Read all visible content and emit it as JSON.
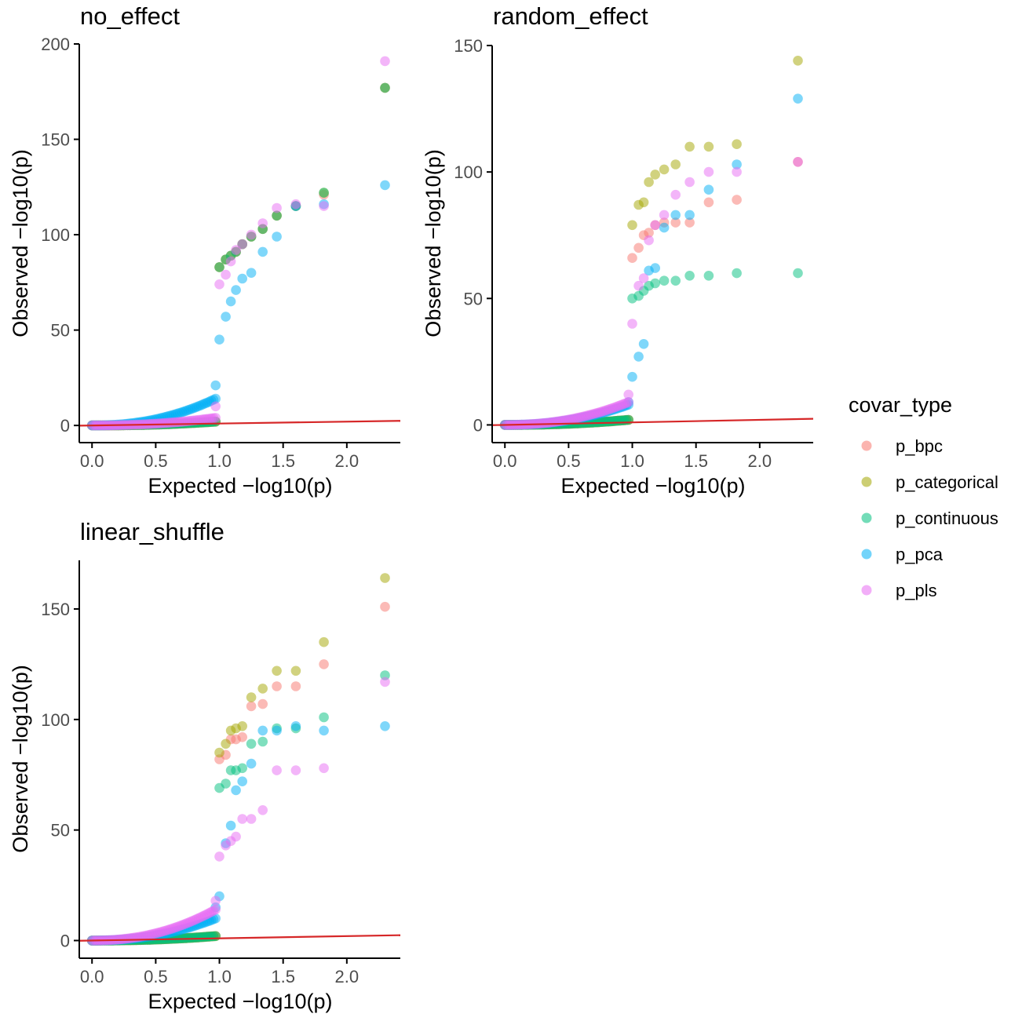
{
  "colors": {
    "p_bpc": "#F8766D",
    "p_categorical": "#A3A500",
    "p_continuous": "#00BF7D",
    "p_pca": "#00B0F6",
    "p_pls": "#E76BF3",
    "reference_line": "#D62728",
    "axis": "#000000",
    "tick_text": "#4D4D4D"
  },
  "legend": {
    "title": "covar_type",
    "items": [
      "p_bpc",
      "p_categorical",
      "p_continuous",
      "p_pca",
      "p_pls"
    ]
  },
  "chart_data": [
    {
      "type": "scatter",
      "title": "no_effect",
      "xlabel": "Expected −log10(p)",
      "ylabel": "Observed −log10(p)",
      "xlim": [
        -0.1,
        2.42
      ],
      "ylim": [
        -9,
        200
      ],
      "xticks": [
        0.0,
        0.5,
        1.0,
        1.5,
        2.0
      ],
      "xtick_labels": [
        "0.0",
        "0.5",
        "1.0",
        "1.5",
        "2.0"
      ],
      "yticks": [
        0,
        50,
        100,
        150,
        200
      ],
      "ytick_labels": [
        "0",
        "50",
        "100",
        "150",
        "200"
      ],
      "reference_line": "y = x",
      "grid": false,
      "series": [
        {
          "name": "p_bpc",
          "tail_x": [
            1.0,
            1.05,
            1.09,
            1.13,
            1.18,
            1.25,
            1.34,
            1.45,
            1.6,
            1.82,
            2.3
          ],
          "tail_y": [
            83,
            87,
            89,
            91,
            95,
            99,
            103,
            110,
            115,
            121,
            177
          ],
          "bulk_end": 2.0
        },
        {
          "name": "p_categorical",
          "tail_x": [
            1.0,
            1.05,
            1.09,
            1.13,
            1.18,
            1.25,
            1.34,
            1.45,
            1.6,
            1.82,
            2.3
          ],
          "tail_y": [
            83,
            87,
            89,
            91,
            95,
            99,
            103,
            110,
            115,
            122,
            177
          ],
          "bulk_end": 2.0
        },
        {
          "name": "p_continuous",
          "tail_x": [
            1.0,
            1.05,
            1.09,
            1.13,
            1.18,
            1.25,
            1.34,
            1.45,
            1.6,
            1.82,
            2.3
          ],
          "tail_y": [
            83,
            87,
            89,
            91,
            95,
            99,
            103,
            110,
            115,
            122,
            177
          ],
          "bulk_end": 2.0
        },
        {
          "name": "p_pca",
          "tail_x": [
            0.97,
            1.0,
            1.05,
            1.09,
            1.13,
            1.18,
            1.25,
            1.34,
            1.45,
            1.6,
            1.82,
            2.3
          ],
          "tail_y": [
            21,
            45,
            57,
            65,
            71,
            77,
            80,
            91,
            99,
            115,
            116,
            126
          ],
          "bulk_end": 14
        },
        {
          "name": "p_pls",
          "tail_x": [
            0.97,
            1.0,
            1.05,
            1.09,
            1.13,
            1.18,
            1.25,
            1.34,
            1.45,
            1.6,
            1.82,
            2.3
          ],
          "tail_y": [
            10,
            74,
            79,
            86,
            92,
            95,
            100,
            106,
            114,
            116,
            115,
            191
          ],
          "bulk_end": 4
        }
      ]
    },
    {
      "type": "scatter",
      "title": "random_effect",
      "xlabel": "Expected −log10(p)",
      "ylabel": "Observed −log10(p)",
      "xlim": [
        -0.1,
        2.42
      ],
      "ylim": [
        -7,
        150
      ],
      "xticks": [
        0.0,
        0.5,
        1.0,
        1.5,
        2.0
      ],
      "xtick_labels": [
        "0.0",
        "0.5",
        "1.0",
        "1.5",
        "2.0"
      ],
      "yticks": [
        0,
        50,
        100,
        150
      ],
      "ytick_labels": [
        "0",
        "50",
        "100",
        "150"
      ],
      "reference_line": "y = x",
      "grid": false,
      "series": [
        {
          "name": "p_bpc",
          "tail_x": [
            1.0,
            1.05,
            1.09,
            1.13,
            1.18,
            1.25,
            1.34,
            1.45,
            1.6,
            1.82,
            2.3
          ],
          "tail_y": [
            66,
            70,
            75,
            76,
            79,
            80,
            80,
            80,
            88,
            89,
            104
          ],
          "bulk_end": 2.0
        },
        {
          "name": "p_categorical",
          "tail_x": [
            1.0,
            1.05,
            1.09,
            1.13,
            1.18,
            1.25,
            1.34,
            1.45,
            1.6,
            1.82,
            2.3
          ],
          "tail_y": [
            79,
            87,
            88,
            96,
            99,
            101,
            103,
            110,
            110,
            111,
            144
          ],
          "bulk_end": 2.0
        },
        {
          "name": "p_continuous",
          "tail_x": [
            1.0,
            1.05,
            1.09,
            1.13,
            1.18,
            1.25,
            1.34,
            1.45,
            1.6,
            1.82,
            2.3
          ],
          "tail_y": [
            50,
            51,
            53,
            55,
            56,
            57,
            57,
            59,
            59,
            60,
            60
          ],
          "bulk_end": 2.0
        },
        {
          "name": "p_pca",
          "tail_x": [
            0.97,
            1.0,
            1.05,
            1.09,
            1.13,
            1.18,
            1.25,
            1.34,
            1.45,
            1.6,
            1.82,
            2.3
          ],
          "tail_y": [
            9,
            19,
            27,
            32,
            61,
            62,
            78,
            83,
            83,
            93,
            103,
            129
          ],
          "bulk_end": 8
        },
        {
          "name": "p_pls",
          "tail_x": [
            0.97,
            1.0,
            1.05,
            1.09,
            1.13,
            1.18,
            1.25,
            1.34,
            1.45,
            1.6,
            1.82,
            2.3
          ],
          "tail_y": [
            12,
            40,
            55,
            58,
            73,
            79,
            83,
            91,
            96,
            100,
            100,
            104
          ],
          "bulk_end": 9
        }
      ]
    },
    {
      "type": "scatter",
      "title": "linear_shuffle",
      "xlabel": "Expected −log10(p)",
      "ylabel": "Observed −log10(p)",
      "xlim": [
        -0.1,
        2.42
      ],
      "ylim": [
        -8,
        172
      ],
      "xticks": [
        0.0,
        0.5,
        1.0,
        1.5,
        2.0
      ],
      "xtick_labels": [
        "0.0",
        "0.5",
        "1.0",
        "1.5",
        "2.0"
      ],
      "yticks": [
        0,
        50,
        100,
        150
      ],
      "ytick_labels": [
        "0",
        "50",
        "100",
        "150"
      ],
      "reference_line": "y = x",
      "grid": false,
      "series": [
        {
          "name": "p_bpc",
          "tail_x": [
            1.0,
            1.05,
            1.09,
            1.13,
            1.18,
            1.25,
            1.34,
            1.45,
            1.6,
            1.82,
            2.3
          ],
          "tail_y": [
            82,
            84,
            91,
            91,
            92,
            106,
            107,
            115,
            115,
            125,
            151
          ],
          "bulk_end": 2.0
        },
        {
          "name": "p_categorical",
          "tail_x": [
            1.0,
            1.05,
            1.09,
            1.13,
            1.18,
            1.25,
            1.34,
            1.45,
            1.6,
            1.82,
            2.3
          ],
          "tail_y": [
            85,
            89,
            95,
            96,
            97,
            110,
            114,
            122,
            122,
            135,
            164
          ],
          "bulk_end": 2.0
        },
        {
          "name": "p_continuous",
          "tail_x": [
            1.0,
            1.05,
            1.09,
            1.13,
            1.18,
            1.25,
            1.34,
            1.45,
            1.6,
            1.82,
            2.3
          ],
          "tail_y": [
            69,
            71,
            77,
            77,
            78,
            89,
            90,
            96,
            96,
            101,
            120
          ],
          "bulk_end": 2.0
        },
        {
          "name": "p_pca",
          "tail_x": [
            0.97,
            1.0,
            1.05,
            1.09,
            1.13,
            1.18,
            1.25,
            1.34,
            1.45,
            1.6,
            1.82,
            2.3
          ],
          "tail_y": [
            15,
            20,
            44,
            52,
            68,
            72,
            80,
            95,
            95,
            97,
            95,
            97
          ],
          "bulk_end": 10
        },
        {
          "name": "p_pls",
          "tail_x": [
            0.97,
            1.0,
            1.05,
            1.09,
            1.13,
            1.18,
            1.25,
            1.34,
            1.45,
            1.6,
            1.82,
            2.3
          ],
          "tail_y": [
            18,
            38,
            43,
            45,
            47,
            55,
            55,
            59,
            77,
            77,
            78,
            117
          ],
          "bulk_end": 14
        }
      ]
    }
  ]
}
